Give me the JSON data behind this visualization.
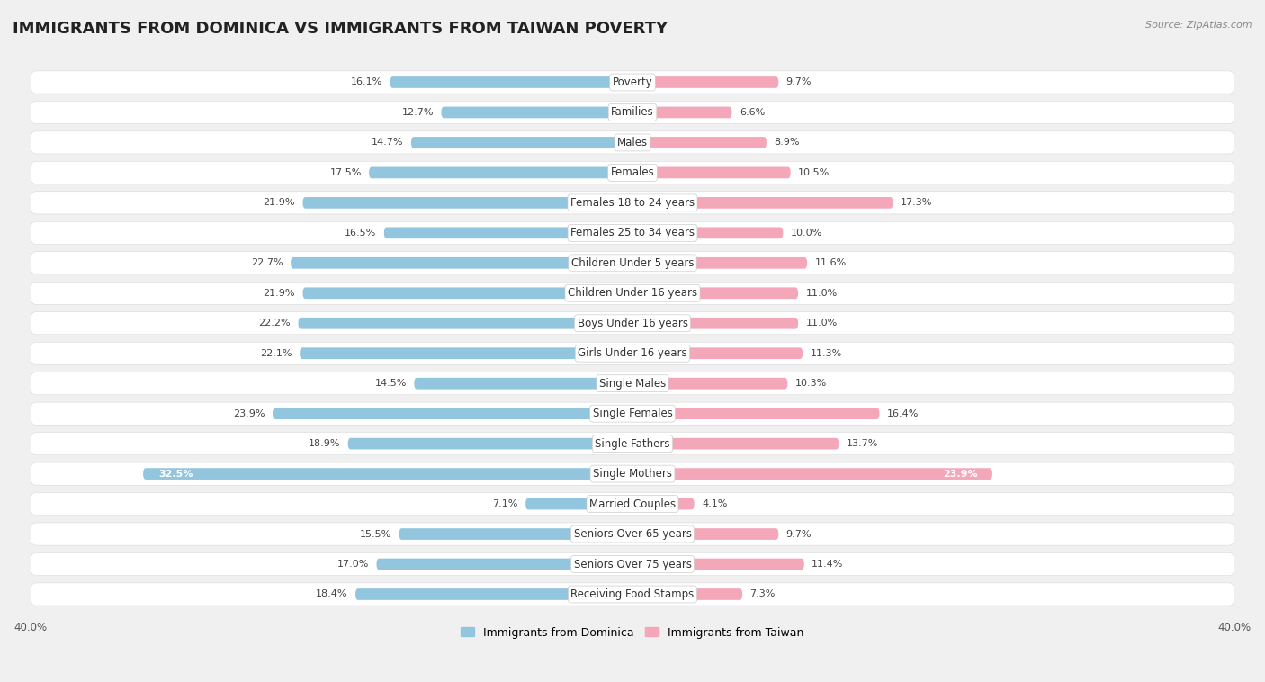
{
  "title": "IMMIGRANTS FROM DOMINICA VS IMMIGRANTS FROM TAIWAN POVERTY",
  "source": "Source: ZipAtlas.com",
  "categories": [
    "Poverty",
    "Families",
    "Males",
    "Females",
    "Females 18 to 24 years",
    "Females 25 to 34 years",
    "Children Under 5 years",
    "Children Under 16 years",
    "Boys Under 16 years",
    "Girls Under 16 years",
    "Single Males",
    "Single Females",
    "Single Fathers",
    "Single Mothers",
    "Married Couples",
    "Seniors Over 65 years",
    "Seniors Over 75 years",
    "Receiving Food Stamps"
  ],
  "dominica_values": [
    16.1,
    12.7,
    14.7,
    17.5,
    21.9,
    16.5,
    22.7,
    21.9,
    22.2,
    22.1,
    14.5,
    23.9,
    18.9,
    32.5,
    7.1,
    15.5,
    17.0,
    18.4
  ],
  "taiwan_values": [
    9.7,
    6.6,
    8.9,
    10.5,
    17.3,
    10.0,
    11.6,
    11.0,
    11.0,
    11.3,
    10.3,
    16.4,
    13.7,
    23.9,
    4.1,
    9.7,
    11.4,
    7.3
  ],
  "dominica_color": "#92c5de",
  "taiwan_color": "#f4a7b9",
  "dominica_label": "Immigrants from Dominica",
  "taiwan_label": "Immigrants from Taiwan",
  "xlim": 40.0,
  "background_color": "#f0f0f0",
  "row_bg_color": "#e8e8e8",
  "bar_bg_color": "#ffffff",
  "title_fontsize": 13,
  "label_fontsize": 8.5,
  "value_fontsize": 8.0,
  "axis_label_fontsize": 8.5
}
